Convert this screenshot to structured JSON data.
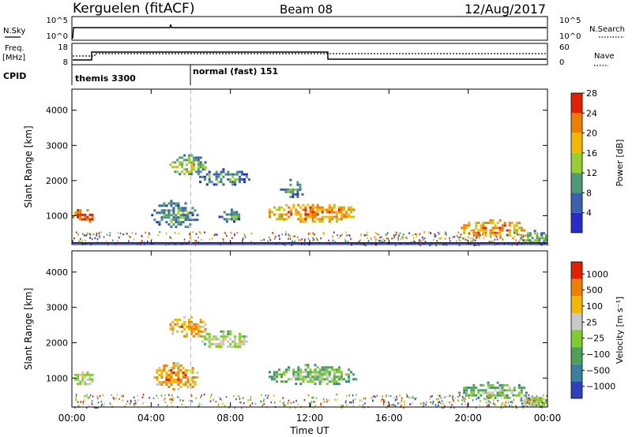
{
  "header": {
    "station": "Kerguelen (fitACF)",
    "beam": "Beam 08",
    "date": "12/Aug/2017"
  },
  "top_panels": {
    "nsky_label": "N.Sky",
    "nsky_ticks": [
      "10^5",
      "10^0"
    ],
    "nsearch_label": "N.Search",
    "nsearch_ticks": [
      "10^5",
      "10^0"
    ],
    "freq_label": "Freq.",
    "freq_unit": "[MHz]",
    "freq_ticks": [
      "18",
      "8"
    ],
    "nave_label": "Nave",
    "nave_ticks": [
      "60",
      "0"
    ],
    "cpid_label": "CPID",
    "cpid_modes": [
      {
        "label": "themis 3300",
        "start_hour": 0
      },
      {
        "label": "normal (fast) 151",
        "start_hour": 6
      }
    ]
  },
  "chart_data": [
    {
      "type": "heatmap",
      "name": "Power",
      "ylabel": "Slant Range [km]",
      "ylim": [
        180,
        4600
      ],
      "yticks": [
        1000,
        2000,
        3000,
        4000
      ],
      "xlim": [
        0,
        24
      ],
      "colorbar_label": "Power [dB]",
      "colorbar_ticks": [
        "4",
        "8",
        "12",
        "16",
        "20",
        "24",
        "28"
      ],
      "colors": [
        "#2a2acb",
        "#3b62b0",
        "#4d9a74",
        "#9acd32",
        "#f5b800",
        "#f07f00",
        "#e02000"
      ],
      "regions": [
        {
          "t": [
            0.0,
            1.1
          ],
          "r": [
            800,
            1250
          ],
          "level": 6
        },
        {
          "t": [
            4.0,
            6.4
          ],
          "r": [
            650,
            1450
          ],
          "level": 2
        },
        {
          "t": [
            4.8,
            6.8
          ],
          "r": [
            2150,
            2750
          ],
          "level": 3
        },
        {
          "t": [
            6.3,
            9.0
          ],
          "r": [
            1850,
            2350
          ],
          "level": 2
        },
        {
          "t": [
            7.4,
            8.5
          ],
          "r": [
            800,
            1200
          ],
          "level": 2
        },
        {
          "t": [
            9.8,
            14.4
          ],
          "r": [
            800,
            1400
          ],
          "level": 5
        },
        {
          "t": [
            10.5,
            11.7
          ],
          "r": [
            1500,
            2050
          ],
          "level": 2
        },
        {
          "t": [
            19.5,
            23.0
          ],
          "r": [
            400,
            900
          ],
          "level": 5
        },
        {
          "t": [
            22.5,
            24.0
          ],
          "r": [
            200,
            600
          ],
          "level": 3
        }
      ]
    },
    {
      "type": "heatmap",
      "name": "Velocity",
      "ylabel": "Slant Range [km]",
      "ylim": [
        180,
        4600
      ],
      "yticks": [
        1000,
        2000,
        3000,
        4000
      ],
      "xlim": [
        0,
        24
      ],
      "xticks": [
        "00:00",
        "04:00",
        "08:00",
        "12:00",
        "16:00",
        "20:00",
        "00:00"
      ],
      "xlabel": "Time UT",
      "colorbar_label": "Velocity [m s⁻¹]",
      "colorbar_ticks": [
        "1000",
        "500",
        "100",
        "25",
        "−25",
        "−100",
        "−500",
        "−1000"
      ],
      "colors": [
        "#2e3fbf",
        "#3a7f9f",
        "#4f9f58",
        "#7fcc30",
        "#c8c8c8",
        "#f0b800",
        "#f07f00",
        "#e02000"
      ],
      "regions": [
        {
          "t": [
            0.0,
            1.1
          ],
          "r": [
            800,
            1250
          ],
          "level": 4
        },
        {
          "t": [
            4.0,
            6.4
          ],
          "r": [
            650,
            1450
          ],
          "level": 6
        },
        {
          "t": [
            4.8,
            6.8
          ],
          "r": [
            2150,
            2750
          ],
          "level": 6
        },
        {
          "t": [
            6.3,
            9.0
          ],
          "r": [
            1850,
            2350
          ],
          "level": 4
        },
        {
          "t": [
            9.8,
            14.4
          ],
          "r": [
            800,
            1400
          ],
          "level": 3
        },
        {
          "t": [
            19.5,
            23.0
          ],
          "r": [
            400,
            900
          ],
          "level": 3
        },
        {
          "t": [
            22.5,
            24.0
          ],
          "r": [
            200,
            600
          ],
          "level": 4
        }
      ]
    }
  ]
}
